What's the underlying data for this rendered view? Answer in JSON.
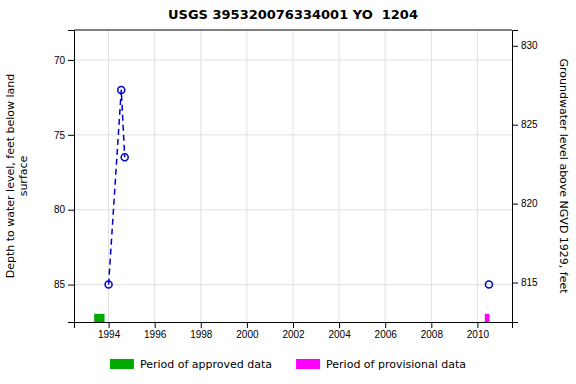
{
  "chart_data": {
    "type": "line",
    "title": "USGS 395320076334001 YO  1204",
    "y_label": "Depth to water level, feet below land\nsurface",
    "y2_label": "Groundwater level above NGVD 1929, feet",
    "series": [
      {
        "x": [
          1994.0,
          1994.55,
          1994.7
        ],
        "values": [
          85.0,
          72.0,
          76.5
        ],
        "color": "#0000cc",
        "marker": "circle",
        "line_style": "dashed"
      },
      {
        "x": [
          2010.5
        ],
        "values": [
          85.0
        ],
        "color": "#0000cc",
        "marker": "circle",
        "line_style": "none"
      }
    ],
    "periods": [
      {
        "name": "Period of approved data",
        "color": "#00aa00",
        "x": 1993.6,
        "width": 0.45
      },
      {
        "name": "Period of provisional data",
        "color": "#ff00ff",
        "x": 2010.42,
        "width": 0.2
      }
    ],
    "xlim": [
      1992.5,
      2011.5
    ],
    "xticks": [
      1994,
      1996,
      1998,
      2000,
      2002,
      2004,
      2006,
      2008,
      2010
    ],
    "ylim": [
      87.5,
      68.0
    ],
    "yticks": [
      70,
      75,
      80,
      85
    ],
    "y2lim": [
      812.5,
      831.0
    ],
    "y2ticks": [
      830,
      825,
      820,
      815
    ],
    "grid": true,
    "legend": "bottom"
  }
}
